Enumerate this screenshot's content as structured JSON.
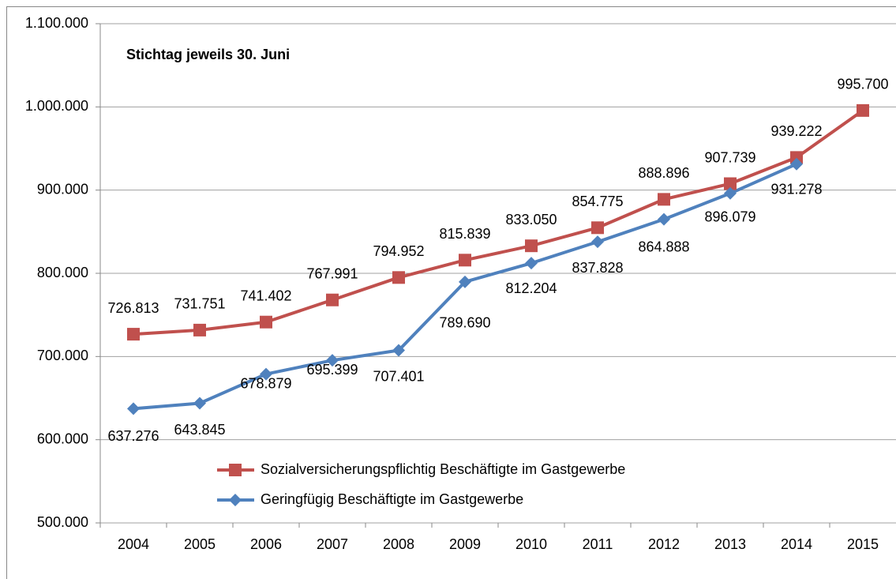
{
  "chart_data": {
    "type": "line",
    "title": "Stichtag jeweils 30. Juni",
    "categories": [
      "2004",
      "2005",
      "2006",
      "2007",
      "2008",
      "2009",
      "2010",
      "2011",
      "2012",
      "2013",
      "2014",
      "2015"
    ],
    "series": [
      {
        "name": "Sozialversicherungspflichtig Beschäftigte im Gastgewerbe",
        "color": "#c0504d",
        "marker": "square",
        "values": [
          726813,
          731751,
          741402,
          767991,
          794952,
          815839,
          833050,
          854775,
          888896,
          907739,
          939222,
          995700
        ],
        "value_labels": [
          "726.813",
          "731.751",
          "741.402",
          "767.991",
          "794.952",
          "815.839",
          "833.050",
          "854.775",
          "888.896",
          "907.739",
          "939.222",
          "995.700"
        ]
      },
      {
        "name": "Geringfügig Beschäftigte im Gastgewerbe",
        "color": "#4f81bd",
        "marker": "diamond",
        "values": [
          637276,
          643845,
          678879,
          695399,
          707401,
          789690,
          812204,
          837828,
          864888,
          896079,
          931278,
          null
        ],
        "value_labels": [
          "637.276",
          "643.845",
          "678.879",
          "695.399",
          "707.401",
          "789.690",
          "812.204",
          "837.828",
          "864.888",
          "896.079",
          "931.278",
          null
        ]
      }
    ],
    "ylim": [
      500000,
      1100000
    ],
    "yticks": [
      {
        "value": 500000,
        "label": "500.000"
      },
      {
        "value": 600000,
        "label": "600.000"
      },
      {
        "value": 700000,
        "label": "700.000"
      },
      {
        "value": 800000,
        "label": "800.000"
      },
      {
        "value": 900000,
        "label": "900.000"
      },
      {
        "value": 1000000,
        "label": "1.000.000"
      },
      {
        "value": 1100000,
        "label": "1.100.000"
      }
    ],
    "grid": true,
    "legend": "bottom"
  }
}
